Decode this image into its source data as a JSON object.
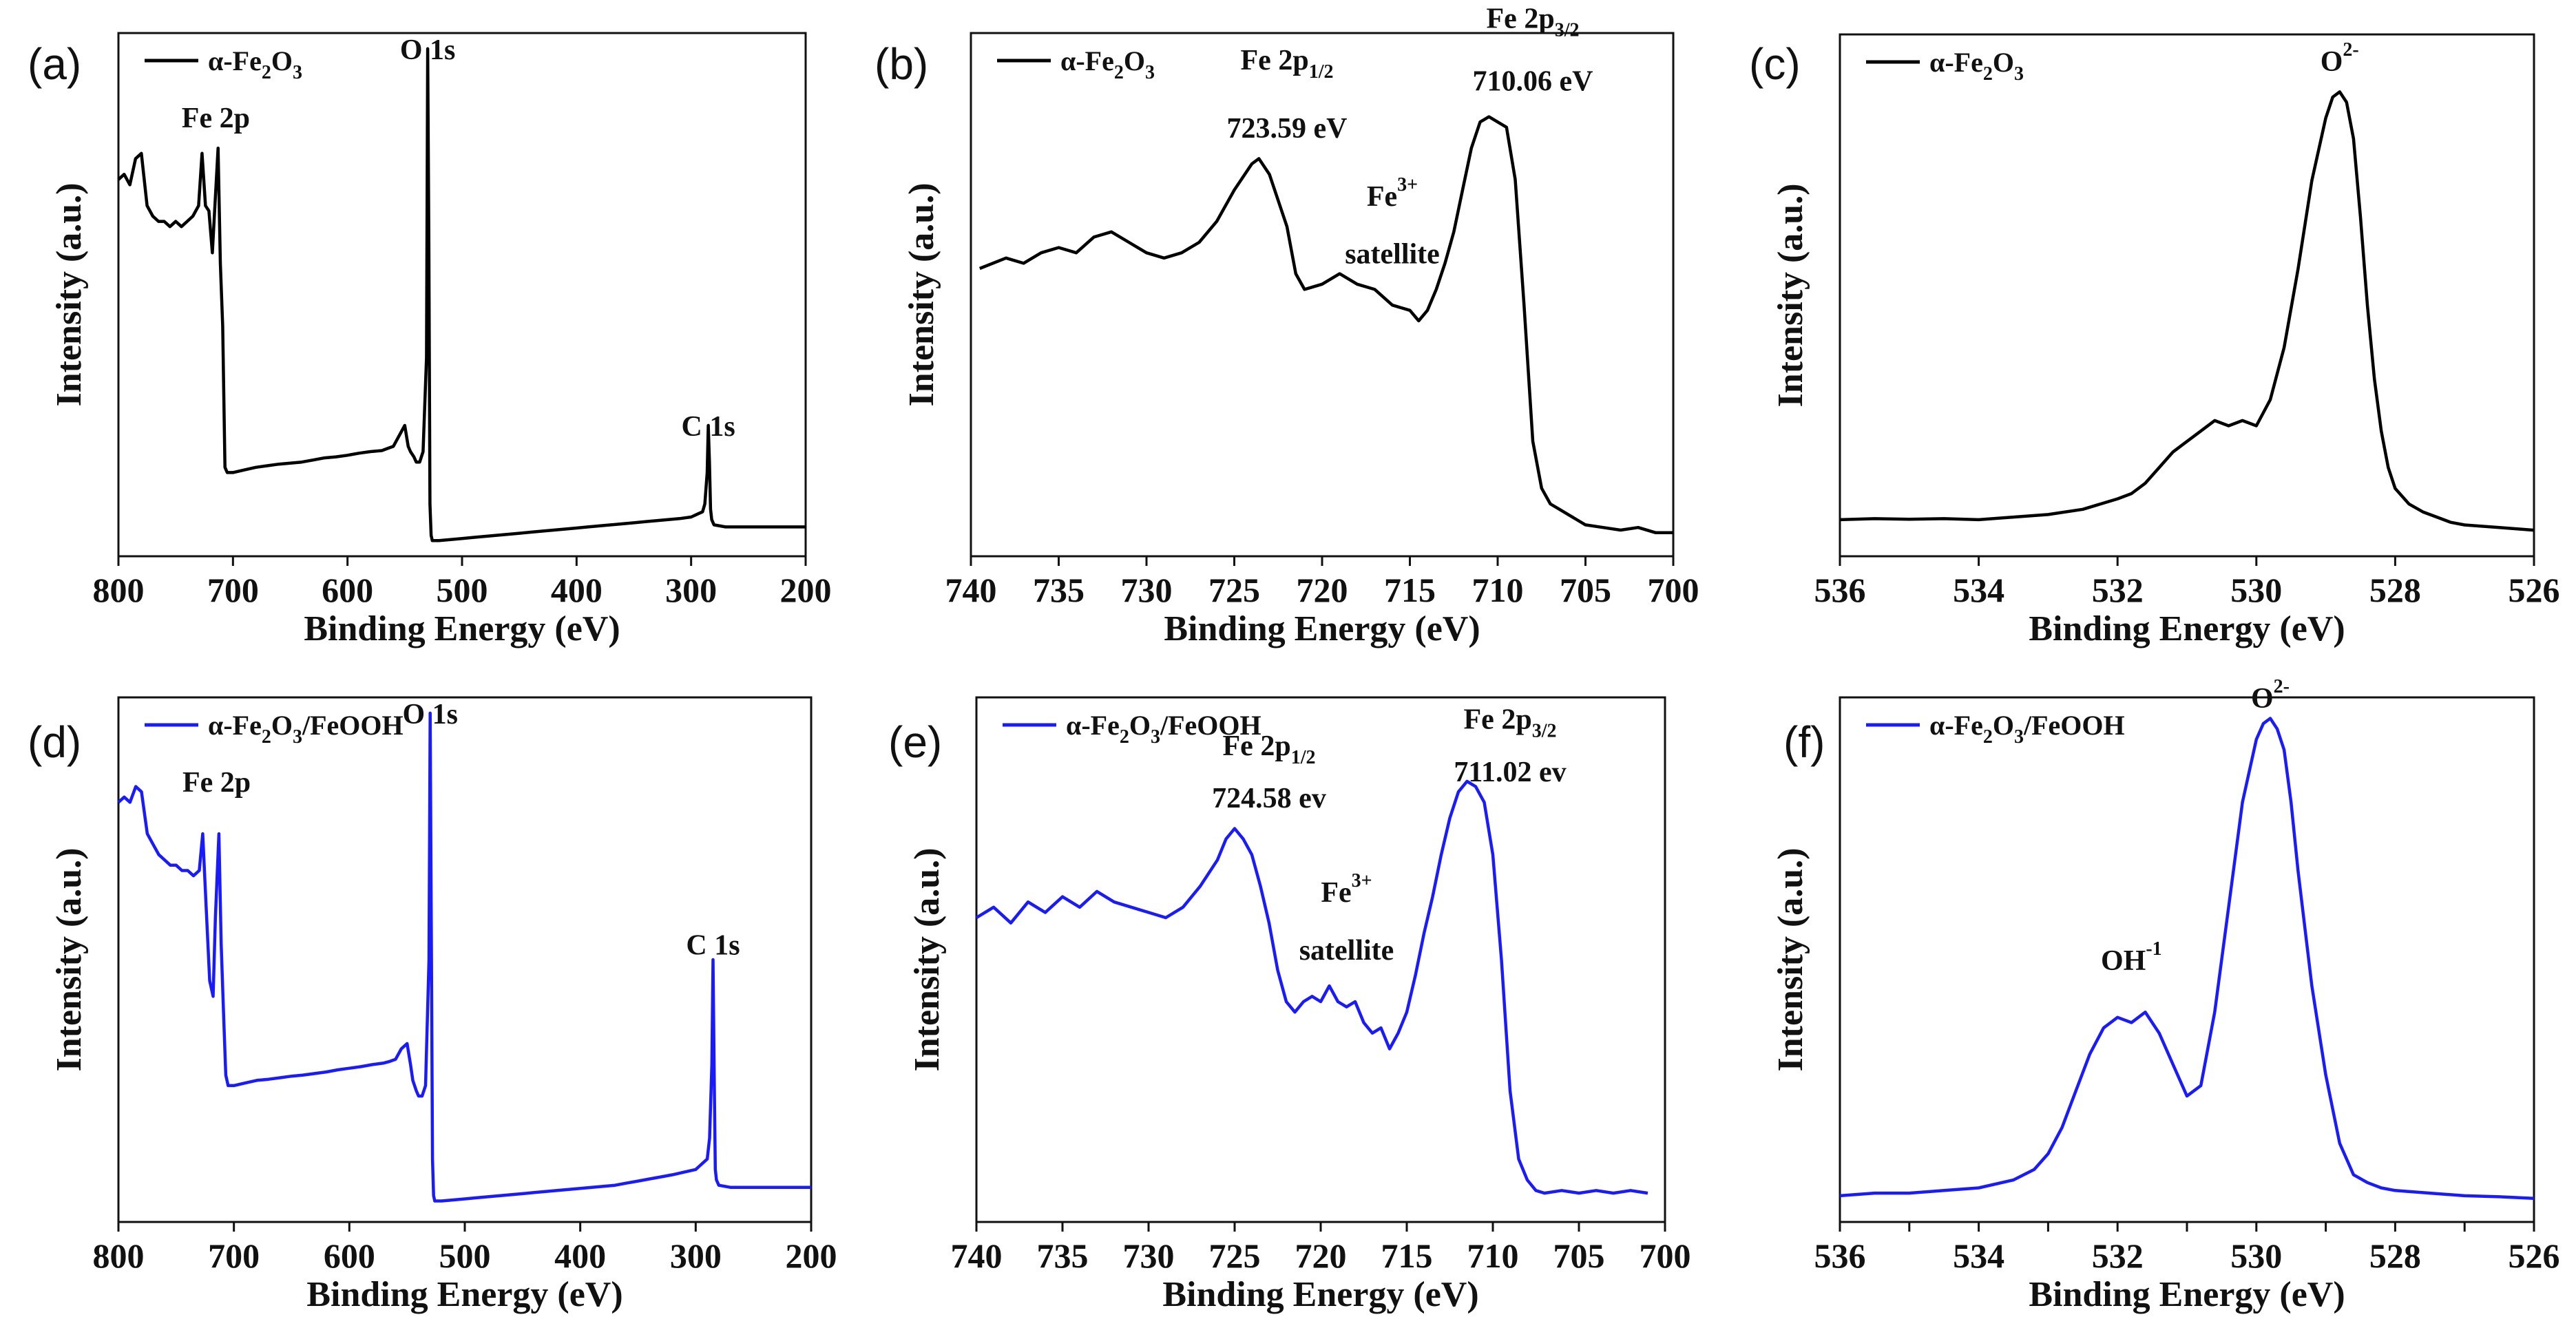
{
  "chart_data": [
    {
      "panel": "(a)",
      "type": "line",
      "xlabel": "Binding Energy (eV)",
      "ylabel": "Intensity (a.u.)",
      "xlim": [
        800,
        200
      ],
      "xticks": [
        800,
        700,
        600,
        500,
        400,
        300,
        200
      ],
      "ylim": [
        0,
        100
      ],
      "color": "#000000",
      "legend": "α-Fe2O3",
      "annotations": [
        {
          "text": "Fe 2p",
          "x": 715,
          "y": 82
        },
        {
          "text": "O 1s",
          "x": 530,
          "y": 95
        },
        {
          "text": "C 1s",
          "x": 285,
          "y": 23
        }
      ],
      "series": [
        {
          "name": "α-Fe2O3",
          "x": [
            800,
            795,
            790,
            785,
            780,
            775,
            770,
            765,
            760,
            755,
            750,
            745,
            740,
            735,
            730,
            727,
            724,
            721,
            718,
            716,
            713,
            711,
            709,
            707,
            705,
            700,
            690,
            680,
            670,
            660,
            650,
            640,
            630,
            620,
            610,
            600,
            590,
            580,
            570,
            565,
            560,
            555,
            550,
            547,
            545,
            542,
            540,
            537,
            534,
            531,
            530,
            529,
            528,
            527,
            526,
            524,
            520,
            510,
            500,
            490,
            480,
            470,
            460,
            450,
            440,
            430,
            420,
            410,
            400,
            390,
            380,
            370,
            360,
            350,
            340,
            330,
            320,
            310,
            300,
            295,
            290,
            288,
            286,
            285,
            284,
            283,
            282,
            280,
            275,
            270,
            260,
            250,
            240,
            230,
            220,
            210,
            200
          ],
          "y": [
            72,
            73,
            71,
            76,
            77,
            67,
            65,
            64,
            64,
            63,
            64,
            63,
            64,
            65,
            67,
            77,
            67,
            66,
            58,
            66,
            78,
            56,
            44,
            17,
            16,
            16,
            16.5,
            17,
            17.3,
            17.6,
            17.8,
            18,
            18.4,
            18.8,
            19,
            19.3,
            19.7,
            20,
            20.2,
            20.6,
            21,
            23,
            25,
            21,
            20,
            19,
            18,
            18,
            20,
            38,
            97,
            60,
            10,
            4,
            3,
            3,
            3,
            3.2,
            3.4,
            3.6,
            3.8,
            4,
            4.2,
            4.4,
            4.6,
            4.8,
            5,
            5.2,
            5.4,
            5.6,
            5.8,
            6,
            6.2,
            6.4,
            6.6,
            6.8,
            7,
            7.2,
            7.5,
            8,
            8.5,
            10,
            16,
            25,
            18,
            9,
            7,
            6,
            5.8,
            5.6,
            5.6,
            5.6,
            5.6,
            5.6,
            5.6,
            5.6,
            5.6
          ]
        }
      ]
    },
    {
      "panel": "(b)",
      "type": "line",
      "xlabel": "Binding Energy (eV)",
      "ylabel": "Intensity (a.u.)",
      "xlim": [
        740,
        700
      ],
      "xticks": [
        740,
        735,
        730,
        725,
        720,
        715,
        710,
        705,
        700
      ],
      "ylim": [
        0,
        100
      ],
      "color": "#000000",
      "legend": "α-Fe2O3",
      "annotations": [
        {
          "text": "Fe 2p1/2",
          "x": 722,
          "y": 93
        },
        {
          "text": "723.59 eV",
          "x": 722,
          "y": 80
        },
        {
          "text": "Fe3+",
          "x": 716,
          "y": 67
        },
        {
          "text": "satellite",
          "x": 716,
          "y": 56
        },
        {
          "text": "Fe 2p3/2",
          "x": 708,
          "y": 101
        },
        {
          "text": "710.06 eV",
          "x": 708,
          "y": 89
        }
      ],
      "series": [
        {
          "name": "α-Fe2O3",
          "x": [
            739.5,
            738,
            737,
            736,
            735,
            734,
            733,
            732,
            731,
            730,
            729,
            728,
            727,
            726,
            725,
            724,
            723.6,
            723,
            722,
            721.5,
            721,
            720,
            719,
            718,
            717,
            716,
            715,
            714.5,
            714,
            713.5,
            713,
            712.5,
            712,
            711.5,
            711,
            710.5,
            710,
            709.5,
            709,
            708.5,
            708,
            707.5,
            707,
            706.5,
            706,
            705,
            704,
            703,
            702,
            701,
            700
          ],
          "y": [
            55,
            57,
            56,
            58,
            59,
            58,
            61,
            62,
            60,
            58,
            57,
            58,
            60,
            64,
            70,
            75,
            76,
            73,
            63,
            54,
            51,
            52,
            54,
            52,
            51,
            48,
            47,
            45,
            47,
            51,
            56,
            62,
            70,
            78,
            83,
            84,
            83,
            82,
            72,
            48,
            22,
            13,
            10,
            9,
            8,
            6,
            5.5,
            5,
            5.5,
            4.5,
            4.5
          ]
        }
      ]
    },
    {
      "panel": "(c)",
      "type": "line",
      "xlabel": "Binding Energy (eV)",
      "ylabel": "Intensity (a.u.)",
      "xlim": [
        536,
        526
      ],
      "xticks": [
        536,
        534,
        532,
        530,
        528,
        526
      ],
      "ylim": [
        0,
        100
      ],
      "color": "#000000",
      "legend": "α-Fe2O3",
      "annotations": [
        {
          "text": "O2-",
          "x": 528.8,
          "y": 93
        }
      ],
      "series": [
        {
          "name": "α-Fe2O3",
          "x": [
            536,
            535.5,
            535,
            534.5,
            534,
            533.5,
            533,
            532.5,
            532,
            531.8,
            531.6,
            531.4,
            531.2,
            531,
            530.8,
            530.6,
            530.4,
            530.2,
            530,
            529.8,
            529.6,
            529.4,
            529.2,
            529,
            528.9,
            528.8,
            528.7,
            528.6,
            528.5,
            528.4,
            528.3,
            528.2,
            528.1,
            528,
            527.8,
            527.6,
            527.4,
            527.2,
            527,
            526.5,
            526
          ],
          "y": [
            7,
            7.2,
            7.1,
            7.2,
            7,
            7.5,
            8,
            9,
            11,
            12,
            14,
            17,
            20,
            22,
            24,
            26,
            25,
            26,
            25,
            30,
            40,
            55,
            72,
            84,
            88,
            89,
            87,
            80,
            65,
            48,
            34,
            24,
            17,
            13,
            10,
            8.5,
            7.5,
            6.5,
            6,
            5.5,
            5
          ]
        }
      ]
    },
    {
      "panel": "(d)",
      "type": "line",
      "xlabel": "Binding Energy (eV)",
      "ylabel": "Intensity (a.u.)",
      "xlim": [
        800,
        200
      ],
      "xticks": [
        800,
        700,
        600,
        500,
        400,
        300,
        200
      ],
      "ylim": [
        0,
        100
      ],
      "color": "#1a1aff",
      "legend": "α-Fe2O3/FeOOH",
      "annotations": [
        {
          "text": "Fe 2p",
          "x": 715,
          "y": 82
        },
        {
          "text": "O 1s",
          "x": 530,
          "y": 95
        },
        {
          "text": "C 1s",
          "x": 285,
          "y": 51
        }
      ],
      "series": [
        {
          "name": "α-Fe2O3/FeOOH",
          "x": [
            800,
            795,
            790,
            785,
            780,
            775,
            770,
            765,
            760,
            755,
            750,
            745,
            740,
            735,
            730,
            727,
            724,
            721,
            718,
            716,
            713,
            711,
            709,
            707,
            705,
            700,
            690,
            680,
            670,
            660,
            650,
            640,
            630,
            620,
            610,
            600,
            590,
            580,
            570,
            565,
            560,
            555,
            550,
            547,
            545,
            542,
            540,
            537,
            534,
            531,
            530,
            529,
            528,
            527,
            526,
            524,
            520,
            510,
            500,
            490,
            480,
            470,
            460,
            450,
            440,
            430,
            420,
            410,
            400,
            390,
            380,
            370,
            360,
            350,
            340,
            330,
            320,
            310,
            300,
            295,
            290,
            288,
            286,
            285,
            284,
            283,
            282,
            280,
            275,
            270,
            260,
            250,
            240,
            230,
            220,
            210,
            200
          ],
          "y": [
            80,
            81,
            80,
            83,
            82,
            74,
            72,
            70,
            69,
            68,
            68,
            67,
            67,
            66,
            67,
            74,
            60,
            46,
            43,
            58,
            74,
            53,
            40,
            28,
            26,
            26,
            26.5,
            27,
            27.2,
            27.5,
            27.8,
            28,
            28.3,
            28.6,
            29,
            29.3,
            29.6,
            30,
            30.3,
            30.6,
            31,
            33,
            34,
            30,
            27,
            25,
            24,
            24,
            26,
            50,
            97,
            55,
            12,
            5,
            4,
            4,
            4,
            4.2,
            4.4,
            4.6,
            4.8,
            5,
            5.2,
            5.4,
            5.6,
            5.8,
            6,
            6.2,
            6.4,
            6.6,
            6.8,
            7,
            7.4,
            7.8,
            8.2,
            8.6,
            9,
            9.5,
            10,
            11,
            12,
            16,
            30,
            50,
            28,
            10,
            8,
            7,
            6.8,
            6.6,
            6.6,
            6.6,
            6.6,
            6.6,
            6.6,
            6.6,
            6.6
          ]
        }
      ]
    },
    {
      "panel": "(e)",
      "type": "line",
      "xlabel": "Binding Energy (eV)",
      "ylabel": "Intensity (a.u.)",
      "xlim": [
        740,
        700
      ],
      "xticks": [
        740,
        735,
        730,
        725,
        720,
        715,
        710,
        705,
        700
      ],
      "ylim": [
        0,
        100
      ],
      "color": "#1a1aff",
      "legend": "α-Fe2O3/FeOOH",
      "annotations": [
        {
          "text": "Fe 2p1/2",
          "x": 723,
          "y": 89
        },
        {
          "text": "724.58 ev",
          "x": 723,
          "y": 79
        },
        {
          "text": "Fe3+",
          "x": 718.5,
          "y": 61
        },
        {
          "text": "satellite",
          "x": 718.5,
          "y": 50
        },
        {
          "text": "Fe 2p3/2",
          "x": 709,
          "y": 94
        },
        {
          "text": "711.02 ev",
          "x": 709,
          "y": 84
        }
      ],
      "series": [
        {
          "name": "α-Fe2O3/FeOOH",
          "x": [
            740,
            739,
            738,
            737,
            736,
            735,
            734,
            733,
            732,
            731,
            730,
            729,
            728,
            727,
            726,
            725.5,
            725,
            724.5,
            724,
            723.5,
            723,
            722.5,
            722,
            721.5,
            721,
            720.5,
            720,
            719.5,
            719,
            718.5,
            718,
            717.5,
            717,
            716.5,
            716,
            715.5,
            715,
            714.5,
            714,
            713.5,
            713,
            712.5,
            712,
            711.5,
            711,
            710.5,
            710,
            709.5,
            709,
            708.5,
            708,
            707.5,
            707,
            706,
            705,
            704,
            703,
            702,
            701
          ],
          "y": [
            58,
            60,
            57,
            61,
            59,
            62,
            60,
            63,
            61,
            60,
            59,
            58,
            60,
            64,
            69,
            73,
            75,
            73,
            70,
            64,
            57,
            48,
            42,
            40,
            42,
            43,
            42,
            45,
            42,
            41,
            42,
            38,
            36,
            37,
            33,
            36,
            40,
            47,
            55,
            62,
            70,
            77,
            82,
            84,
            83,
            80,
            70,
            50,
            25,
            12,
            8,
            6,
            5.5,
            6,
            5.5,
            6,
            5.5,
            6,
            5.5
          ]
        }
      ]
    },
    {
      "panel": "(f)",
      "type": "line",
      "xlabel": "Binding Energy (eV)",
      "ylabel": "Intensity (a.u.)",
      "xlim": [
        536,
        526
      ],
      "xticks": [
        536,
        535,
        534,
        533,
        532,
        531,
        530,
        529,
        528,
        527,
        526
      ],
      "tick_labels": [
        536,
        534,
        532,
        530,
        528,
        526
      ],
      "ylim": [
        0,
        100
      ],
      "color": "#1a1aff",
      "legend": "α-Fe2O3/FeOOH",
      "annotations": [
        {
          "text": "OH-1",
          "x": 531.8,
          "y": 48
        },
        {
          "text": "O2-",
          "x": 529.8,
          "y": 98
        }
      ],
      "series": [
        {
          "name": "α-Fe2O3/FeOOH",
          "x": [
            536,
            535.5,
            535,
            534.5,
            534,
            533.5,
            533.2,
            533,
            532.8,
            532.6,
            532.4,
            532.2,
            532,
            531.8,
            531.6,
            531.4,
            531.2,
            531,
            530.8,
            530.6,
            530.4,
            530.2,
            530,
            529.9,
            529.8,
            529.7,
            529.6,
            529.5,
            529.4,
            529.2,
            529,
            528.8,
            528.6,
            528.4,
            528.2,
            528,
            527.5,
            527,
            526.5,
            526
          ],
          "y": [
            5,
            5.5,
            5.5,
            6,
            6.5,
            8,
            10,
            13,
            18,
            25,
            32,
            37,
            39,
            38,
            40,
            36,
            30,
            24,
            26,
            40,
            60,
            80,
            92,
            95,
            96,
            94,
            90,
            80,
            67,
            45,
            28,
            15,
            9,
            7.5,
            6.5,
            6,
            5.5,
            5,
            4.8,
            4.5
          ]
        }
      ]
    }
  ]
}
